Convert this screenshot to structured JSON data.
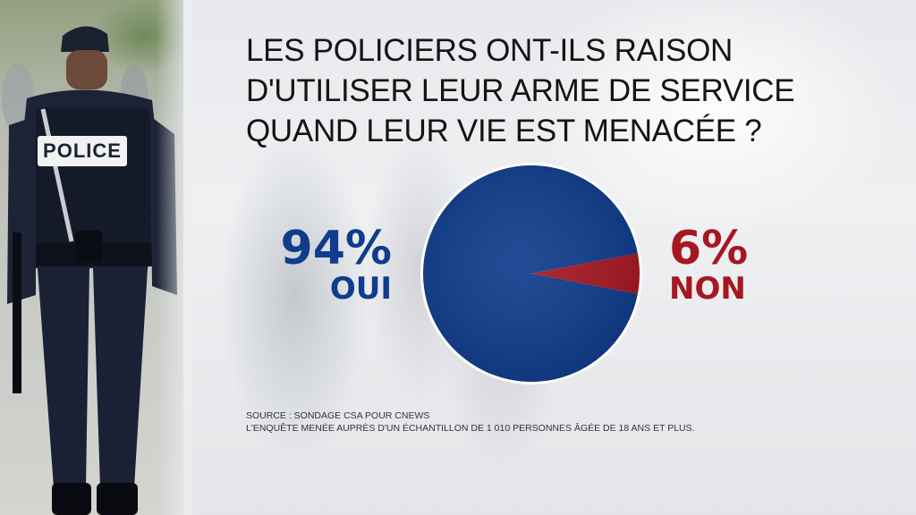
{
  "title": "LES POLICIERS ONT-ILS RAISON D'UTILISER LEUR ARME DE SERVICE QUAND LEUR VIE EST MENACÉE ?",
  "photo": {
    "patch_text": "POLICE"
  },
  "labels": {
    "oui": {
      "percent": "94%",
      "label": "OUI"
    },
    "non": {
      "percent": "6%",
      "label": "NON"
    }
  },
  "source": {
    "line1": "SOURCE : SONDAGE CSA POUR CNEWS",
    "line2": "L'ENQUÊTE MENÉE AUPRÈS D'UN ÉCHANTILLON DE 1 010 PERSONNES ÂGÉE DE 18 ANS ET PLUS."
  },
  "colors": {
    "oui": "#0f3c8c",
    "non": "#a51822",
    "ring": "#ffffff"
  },
  "chart_data": {
    "type": "pie",
    "title": "LES POLICIERS ONT-ILS RAISON D'UTILISER LEUR ARME DE SERVICE QUAND LEUR VIE EST MENACÉE ?",
    "categories": [
      "OUI",
      "NON"
    ],
    "values": [
      94,
      6
    ]
  }
}
